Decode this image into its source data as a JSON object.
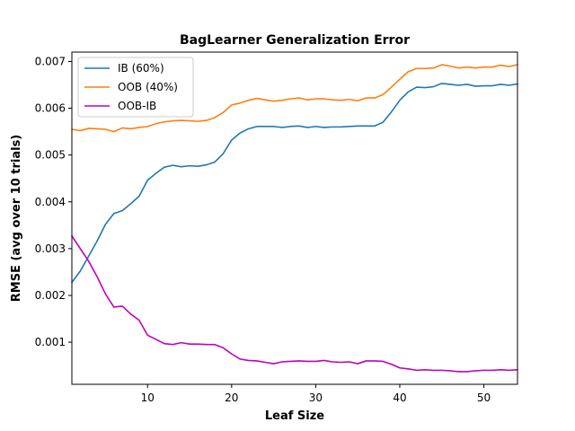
{
  "chart_data": {
    "type": "line",
    "title": "BagLearner Generalization Error",
    "xlabel": "Leaf Size",
    "ylabel": "RMSE (avg over 10 trials)",
    "xlim": [
      1,
      54
    ],
    "ylim": [
      0.0001,
      0.0072
    ],
    "xticks": [
      10,
      20,
      30,
      40,
      50
    ],
    "xtick_labels": [
      "10",
      "20",
      "30",
      "40",
      "50"
    ],
    "yticks": [
      0.001,
      0.002,
      0.003,
      0.004,
      0.005,
      0.006,
      0.007
    ],
    "ytick_labels": [
      "0.001",
      "0.002",
      "0.003",
      "0.004",
      "0.005",
      "0.006",
      "0.007"
    ],
    "grid": false,
    "legend_position": "top-left",
    "x": [
      1,
      2,
      3,
      4,
      5,
      6,
      7,
      8,
      9,
      10,
      11,
      12,
      13,
      14,
      15,
      16,
      17,
      18,
      19,
      20,
      21,
      22,
      23,
      24,
      25,
      26,
      27,
      28,
      29,
      30,
      31,
      32,
      33,
      34,
      35,
      36,
      37,
      38,
      39,
      40,
      41,
      42,
      43,
      44,
      45,
      46,
      47,
      48,
      49,
      50,
      51,
      52,
      53,
      54
    ],
    "series": [
      {
        "name": "IB (60%)",
        "color": "#1f77b4",
        "values": [
          0.00228,
          0.00252,
          0.00284,
          0.00316,
          0.00352,
          0.00375,
          0.00381,
          0.00396,
          0.00412,
          0.00446,
          0.00461,
          0.00474,
          0.00478,
          0.00475,
          0.00477,
          0.00476,
          0.00479,
          0.00485,
          0.00503,
          0.00532,
          0.00547,
          0.00556,
          0.00561,
          0.00561,
          0.00561,
          0.00559,
          0.00561,
          0.00562,
          0.00559,
          0.00561,
          0.00559,
          0.0056,
          0.0056,
          0.00561,
          0.00562,
          0.00562,
          0.00562,
          0.0057,
          0.00592,
          0.00617,
          0.00635,
          0.00645,
          0.00644,
          0.00646,
          0.00653,
          0.00651,
          0.00649,
          0.00651,
          0.00647,
          0.00648,
          0.00648,
          0.00651,
          0.00649,
          0.00652
        ]
      },
      {
        "name": "OOB (40%)",
        "color": "#ff7f0e",
        "values": [
          0.00555,
          0.00552,
          0.00557,
          0.00556,
          0.00555,
          0.0055,
          0.00558,
          0.00556,
          0.00559,
          0.00561,
          0.00567,
          0.00571,
          0.00573,
          0.00574,
          0.00573,
          0.00572,
          0.00574,
          0.0058,
          0.00591,
          0.00607,
          0.00611,
          0.00617,
          0.00621,
          0.00618,
          0.00615,
          0.00617,
          0.0062,
          0.00622,
          0.00618,
          0.0062,
          0.0062,
          0.00618,
          0.00617,
          0.00619,
          0.00616,
          0.00622,
          0.00622,
          0.00629,
          0.00645,
          0.00662,
          0.00678,
          0.00685,
          0.00685,
          0.00686,
          0.00693,
          0.0069,
          0.00686,
          0.00688,
          0.00686,
          0.00688,
          0.00688,
          0.00692,
          0.00689,
          0.00693
        ]
      },
      {
        "name": "OOB-IB",
        "color": "#bf00bf",
        "values": [
          0.00327,
          0.003,
          0.00273,
          0.0024,
          0.00203,
          0.00175,
          0.00177,
          0.0016,
          0.00147,
          0.00115,
          0.00106,
          0.00097,
          0.00095,
          0.00099,
          0.00096,
          0.00096,
          0.00095,
          0.00095,
          0.00088,
          0.00075,
          0.00064,
          0.00061,
          0.0006,
          0.00057,
          0.00054,
          0.00058,
          0.00059,
          0.0006,
          0.00059,
          0.00059,
          0.00061,
          0.00058,
          0.00057,
          0.00058,
          0.00054,
          0.0006,
          0.0006,
          0.00059,
          0.00053,
          0.00045,
          0.00043,
          0.0004,
          0.00041,
          0.0004,
          0.0004,
          0.00039,
          0.00037,
          0.00037,
          0.00039,
          0.0004,
          0.0004,
          0.00041,
          0.0004,
          0.00041
        ]
      }
    ]
  }
}
